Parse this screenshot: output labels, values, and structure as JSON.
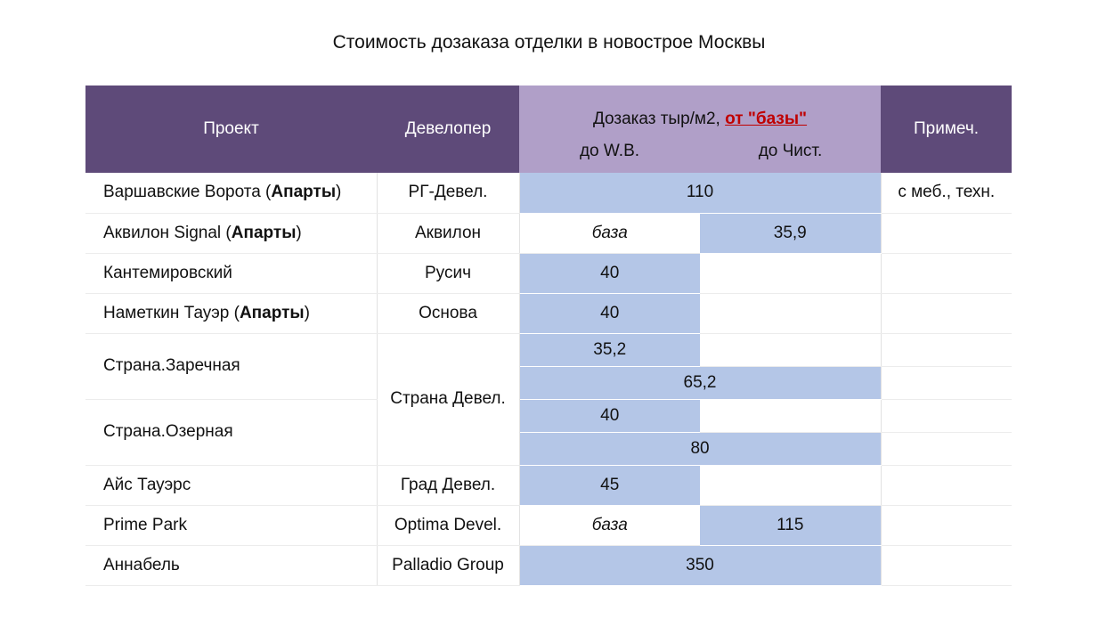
{
  "title": "Стоимость дозаказа отделки в новострое Москвы",
  "header": {
    "project": "Проект",
    "developer": "Девелопер",
    "group_prefix": "Дозаказ тыр/м2, ",
    "group_link": "от \"базы\"",
    "sub_wb": "до W.B.",
    "sub_clean": "до Чист.",
    "notes": "Примеч."
  },
  "rows": [
    {
      "project": "Варшавские Ворота (",
      "tag": "Апарты",
      "close": ")",
      "developer": "РГ-Девел.",
      "merged": "110",
      "notes": "с меб., техн."
    },
    {
      "project": "Аквилон Signal (",
      "tag": "Апарты",
      "close": ")",
      "developer": "Аквилон",
      "wb": "база",
      "clean": "35,9",
      "notes": ""
    },
    {
      "project": "Кантемировский",
      "developer": "Русич",
      "wb": "40",
      "clean": "",
      "notes": ""
    },
    {
      "project": "Наметкин Тауэр (",
      "tag": "Апарты",
      "close": ")",
      "developer": "Основа",
      "wb": "40",
      "clean": "",
      "notes": ""
    },
    {
      "project": "Страна.Заречная",
      "developer": "Страна Девел.",
      "sub": [
        {
          "wb": "35,2"
        },
        {
          "merged": "65,2"
        }
      ]
    },
    {
      "project": "Страна.Озерная",
      "sub": [
        {
          "wb": "40"
        },
        {
          "merged": "80"
        }
      ]
    },
    {
      "project": "Айс Тауэрс",
      "developer": "Град Девел.",
      "wb": "45",
      "clean": "",
      "notes": ""
    },
    {
      "project": "Prime Park",
      "developer": "Optima Devel.",
      "wb": "база",
      "clean": "115",
      "notes": ""
    },
    {
      "project": "Аннабель",
      "developer": "Palladio Group",
      "merged": "350",
      "notes": ""
    }
  ],
  "colors": {
    "header_dark": "#5e4a79",
    "header_light": "#b09fc8",
    "cell_blue": "#b4c6e7",
    "link_red": "#c00000"
  }
}
